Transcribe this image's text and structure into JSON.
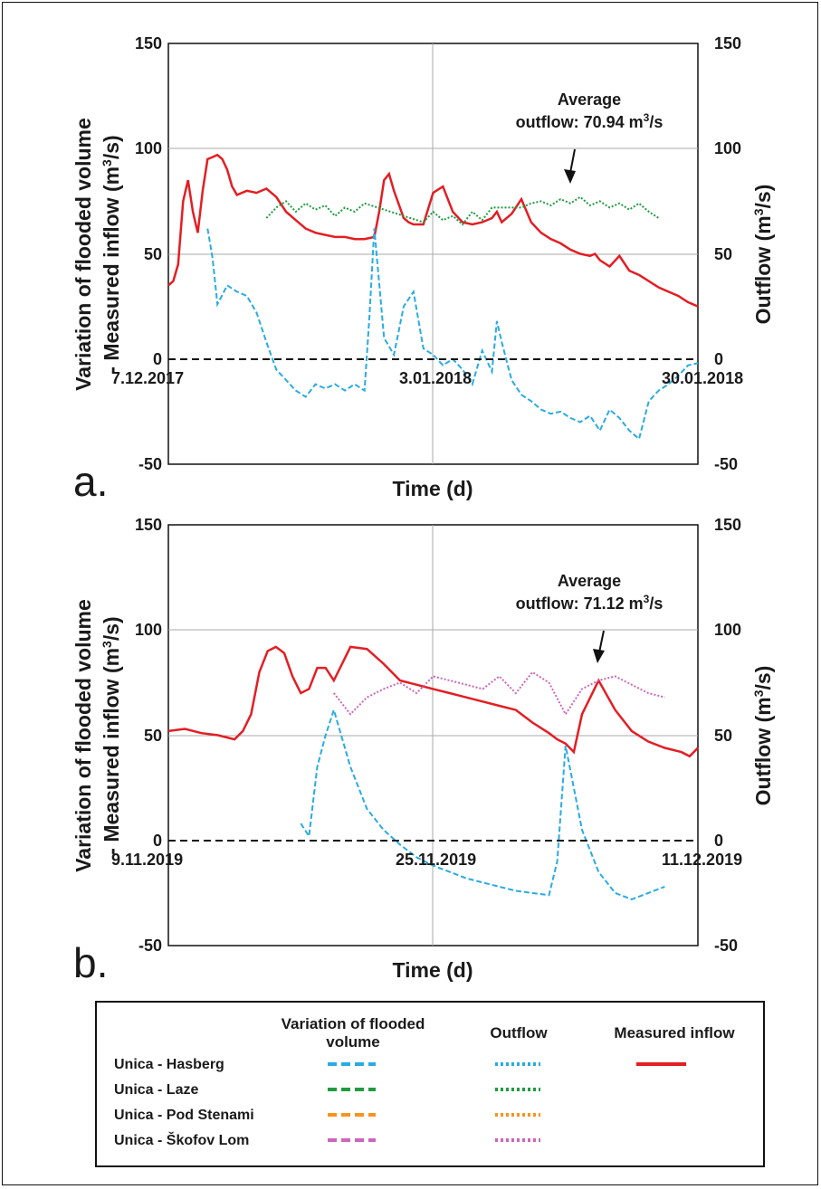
{
  "panels": [
    {
      "letter": "a.",
      "ylabel_left_line1": "Variation of flooded volume",
      "ylabel_left_line2": "- Measured inflow (m",
      "ylabel_left_sup": "3",
      "ylabel_left_end": "/s)",
      "ylabel_right": "Outflow (m",
      "ylabel_right_sup": "3",
      "ylabel_right_end": "/s)",
      "xlabel": "Time (d)",
      "yticks": [
        "150",
        "100",
        "50",
        "0",
        "-50"
      ],
      "ylim": [
        -50,
        150
      ],
      "date_labels": [
        "7.12.2017",
        "3.01.2018",
        "30.01.2018"
      ],
      "annotation_line1": "Average",
      "annotation_line2": "outflow: 70.94 m",
      "annotation_sup": "3",
      "annotation_end": "/s"
    },
    {
      "letter": "b.",
      "ylabel_left_line1": "Variation of flooded volume",
      "ylabel_left_line2": "- Measured inflow (m",
      "ylabel_left_sup": "3",
      "ylabel_left_end": "/s)",
      "ylabel_right": "Outflow (m",
      "ylabel_right_sup": "3",
      "ylabel_right_end": "/s)",
      "xlabel": "Time (d)",
      "yticks": [
        "150",
        "100",
        "50",
        "0",
        "-50"
      ],
      "ylim": [
        -50,
        150
      ],
      "date_labels": [
        "9.11.2019",
        "25.11.2019",
        "11.12.2019"
      ],
      "annotation_line1": "Average",
      "annotation_line2": "outflow: 71.12 m",
      "annotation_sup": "3",
      "annotation_end": "/s"
    }
  ],
  "legend": {
    "col_variation_line1": "Variation of flooded",
    "col_variation_line2": "volume",
    "col_outflow": "Outflow",
    "col_inflow": "Measured inflow",
    "rows": [
      "Unica - Hasberg",
      "Unica - Laze",
      "Unica - Pod Stenami",
      "Unica - Škofov Lom"
    ],
    "colors": [
      "#29abe2",
      "#1e9c3f",
      "#f7941d",
      "#cc66bb"
    ],
    "inflow_color": "#e31e24"
  },
  "chart_data": [
    {
      "type": "line",
      "x_unit": "days since 7.12.2017",
      "xlim": [
        0,
        54
      ],
      "ylim": [
        -50,
        150
      ],
      "series": [
        {
          "name": "Measured inflow",
          "style": "solid",
          "color": "#e31e24",
          "x": [
            0,
            0.5,
            1,
            1.5,
            2,
            2.5,
            3,
            3.5,
            4,
            4.5,
            5,
            5.5,
            6,
            6.5,
            7,
            8,
            9,
            10,
            11,
            12,
            13,
            14,
            15,
            16,
            17,
            18,
            19,
            20,
            21,
            21.5,
            22,
            22.5,
            23,
            24,
            24.5,
            25,
            26,
            27,
            28,
            29,
            30,
            31,
            32,
            33,
            33.5,
            34,
            35,
            36,
            37,
            38,
            39,
            40,
            41,
            42,
            43,
            43.5,
            44,
            45,
            46,
            47,
            48,
            49,
            50,
            51,
            52,
            53,
            54
          ],
          "y": [
            35,
            37,
            45,
            75,
            85,
            70,
            60,
            80,
            95,
            96,
            97,
            95,
            90,
            82,
            78,
            80,
            79,
            81,
            77,
            70,
            66,
            62,
            60,
            59,
            58,
            58,
            57,
            57,
            58,
            70,
            85,
            88,
            80,
            67,
            65,
            64,
            64,
            79,
            82,
            70,
            65,
            64,
            65,
            67,
            70,
            65,
            69,
            76,
            65,
            60,
            57,
            55,
            52,
            50,
            49,
            50,
            47,
            44,
            49,
            42,
            40,
            37,
            34,
            32,
            30,
            27,
            25
          ]
        },
        {
          "name": "Variation of flooded volume",
          "style": "dashed",
          "color": "#29abe2",
          "x": [
            4,
            4.5,
            5,
            6,
            7,
            8,
            9,
            10,
            11,
            12,
            13,
            14,
            15,
            16,
            17,
            18,
            19,
            20,
            20.5,
            21,
            22,
            23,
            24,
            25,
            26,
            27,
            28,
            29,
            30,
            31,
            32,
            33,
            33.5,
            34,
            35,
            36,
            37,
            38,
            39,
            40,
            41,
            42,
            43,
            44,
            45,
            46,
            47,
            48,
            49,
            50,
            51,
            52,
            53,
            54
          ],
          "y": [
            62,
            48,
            26,
            35,
            32,
            30,
            22,
            8,
            -5,
            -10,
            -15,
            -18,
            -12,
            -14,
            -12,
            -15,
            -12,
            -15,
            20,
            62,
            10,
            2,
            25,
            32,
            5,
            2,
            -3,
            0,
            -5,
            -12,
            4,
            -6,
            18,
            8,
            -10,
            -17,
            -20,
            -24,
            -26,
            -25,
            -28,
            -30,
            -27,
            -34,
            -24,
            -28,
            -34,
            -38,
            -20,
            -15,
            -12,
            -8,
            -3,
            -2
          ]
        },
        {
          "name": "Outflow",
          "style": "dotted",
          "color": "#1e9c3f",
          "x": [
            10,
            11,
            12,
            13,
            14,
            15,
            16,
            17,
            18,
            19,
            20,
            26,
            27,
            28,
            29,
            30,
            31,
            32,
            33,
            36,
            37,
            38,
            39,
            40,
            41,
            42,
            43,
            44,
            45,
            46,
            47,
            48,
            49,
            50
          ],
          "y": [
            67,
            72,
            75,
            70,
            74,
            71,
            73,
            68,
            72,
            70,
            74,
            65,
            70,
            66,
            68,
            64,
            70,
            66,
            72,
            72,
            74,
            75,
            73,
            76,
            74,
            77,
            73,
            75,
            72,
            74,
            71,
            74,
            70,
            67
          ]
        }
      ]
    },
    {
      "type": "line",
      "x_unit": "days since 9.11.2019",
      "xlim": [
        0,
        32
      ],
      "ylim": [
        -50,
        150
      ],
      "series": [
        {
          "name": "Measured inflow",
          "style": "solid",
          "color": "#e31e24",
          "x": [
            0,
            1,
            2,
            3,
            4,
            4.5,
            5,
            5.5,
            6,
            6.5,
            7,
            7.5,
            8,
            8.5,
            9,
            9.5,
            10,
            10.5,
            11,
            12,
            13,
            14,
            15,
            16,
            17,
            18,
            19,
            20,
            21,
            22,
            23,
            23.5,
            24,
            24.5,
            25,
            26,
            27,
            28,
            29,
            30,
            31,
            31.5,
            32
          ],
          "y": [
            52,
            53,
            51,
            50,
            48,
            52,
            60,
            80,
            90,
            92,
            89,
            78,
            70,
            72,
            82,
            82,
            76,
            84,
            92,
            91,
            84,
            76,
            74,
            72,
            70,
            68,
            66,
            64,
            62,
            56,
            51,
            48,
            46,
            42,
            60,
            76,
            62,
            52,
            47,
            44,
            42,
            40,
            44
          ]
        },
        {
          "name": "Variation of flooded volume",
          "style": "dashed",
          "color": "#29abe2",
          "x": [
            8,
            8.5,
            9,
            9.5,
            10,
            11,
            12,
            13,
            14,
            15,
            16,
            17,
            18,
            19,
            20,
            21,
            22,
            23,
            23.5,
            24,
            24.5,
            25,
            26,
            27,
            28,
            29,
            30
          ],
          "y": [
            8,
            2,
            35,
            50,
            62,
            35,
            15,
            5,
            -2,
            -8,
            -12,
            -15,
            -18,
            -20,
            -22,
            -24,
            -25,
            -26,
            -10,
            45,
            25,
            5,
            -15,
            -25,
            -28,
            -25,
            -22
          ]
        },
        {
          "name": "Outflow",
          "style": "dotted",
          "color": "#cc66bb",
          "x": [
            10,
            11,
            12,
            13,
            14,
            15,
            16,
            17,
            18,
            19,
            20,
            21,
            22,
            23,
            24,
            25,
            26,
            27,
            28,
            29,
            30
          ],
          "y": [
            70,
            60,
            68,
            72,
            75,
            70,
            78,
            76,
            74,
            72,
            78,
            70,
            80,
            75,
            60,
            72,
            76,
            78,
            74,
            70,
            68
          ]
        }
      ]
    }
  ]
}
